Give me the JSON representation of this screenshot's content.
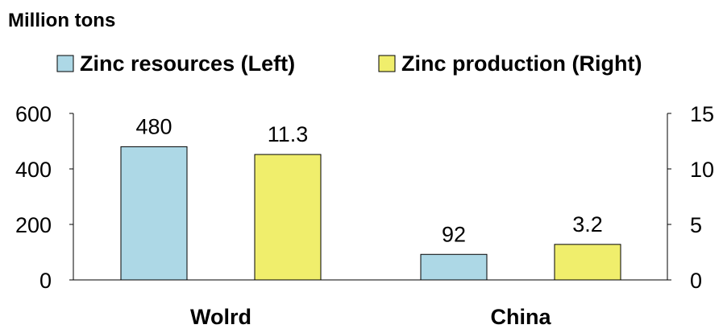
{
  "chart_data": {
    "type": "bar",
    "unit_label": "Million tons",
    "categories": [
      "Wolrd",
      "China"
    ],
    "series": [
      {
        "name": "Zinc resources (Left)",
        "axis": "left",
        "values": [
          480,
          92
        ],
        "value_labels": [
          "480",
          "92"
        ],
        "color": "#add8e6"
      },
      {
        "name": "Zinc production (Right)",
        "axis": "right",
        "values": [
          11.3,
          3.2
        ],
        "value_labels": [
          "11.3",
          "3.2"
        ],
        "color": "#f0ee6c"
      }
    ],
    "left_axis": {
      "range": [
        0,
        600
      ],
      "ticks": [
        0,
        200,
        400,
        600
      ],
      "tick_labels": [
        "0",
        "200",
        "400",
        "600"
      ]
    },
    "right_axis": {
      "range": [
        0,
        15
      ],
      "ticks": [
        0,
        5,
        10,
        15
      ],
      "tick_labels": [
        "0",
        "5",
        "10",
        "15"
      ]
    },
    "legend_position": "top",
    "grid": false
  }
}
